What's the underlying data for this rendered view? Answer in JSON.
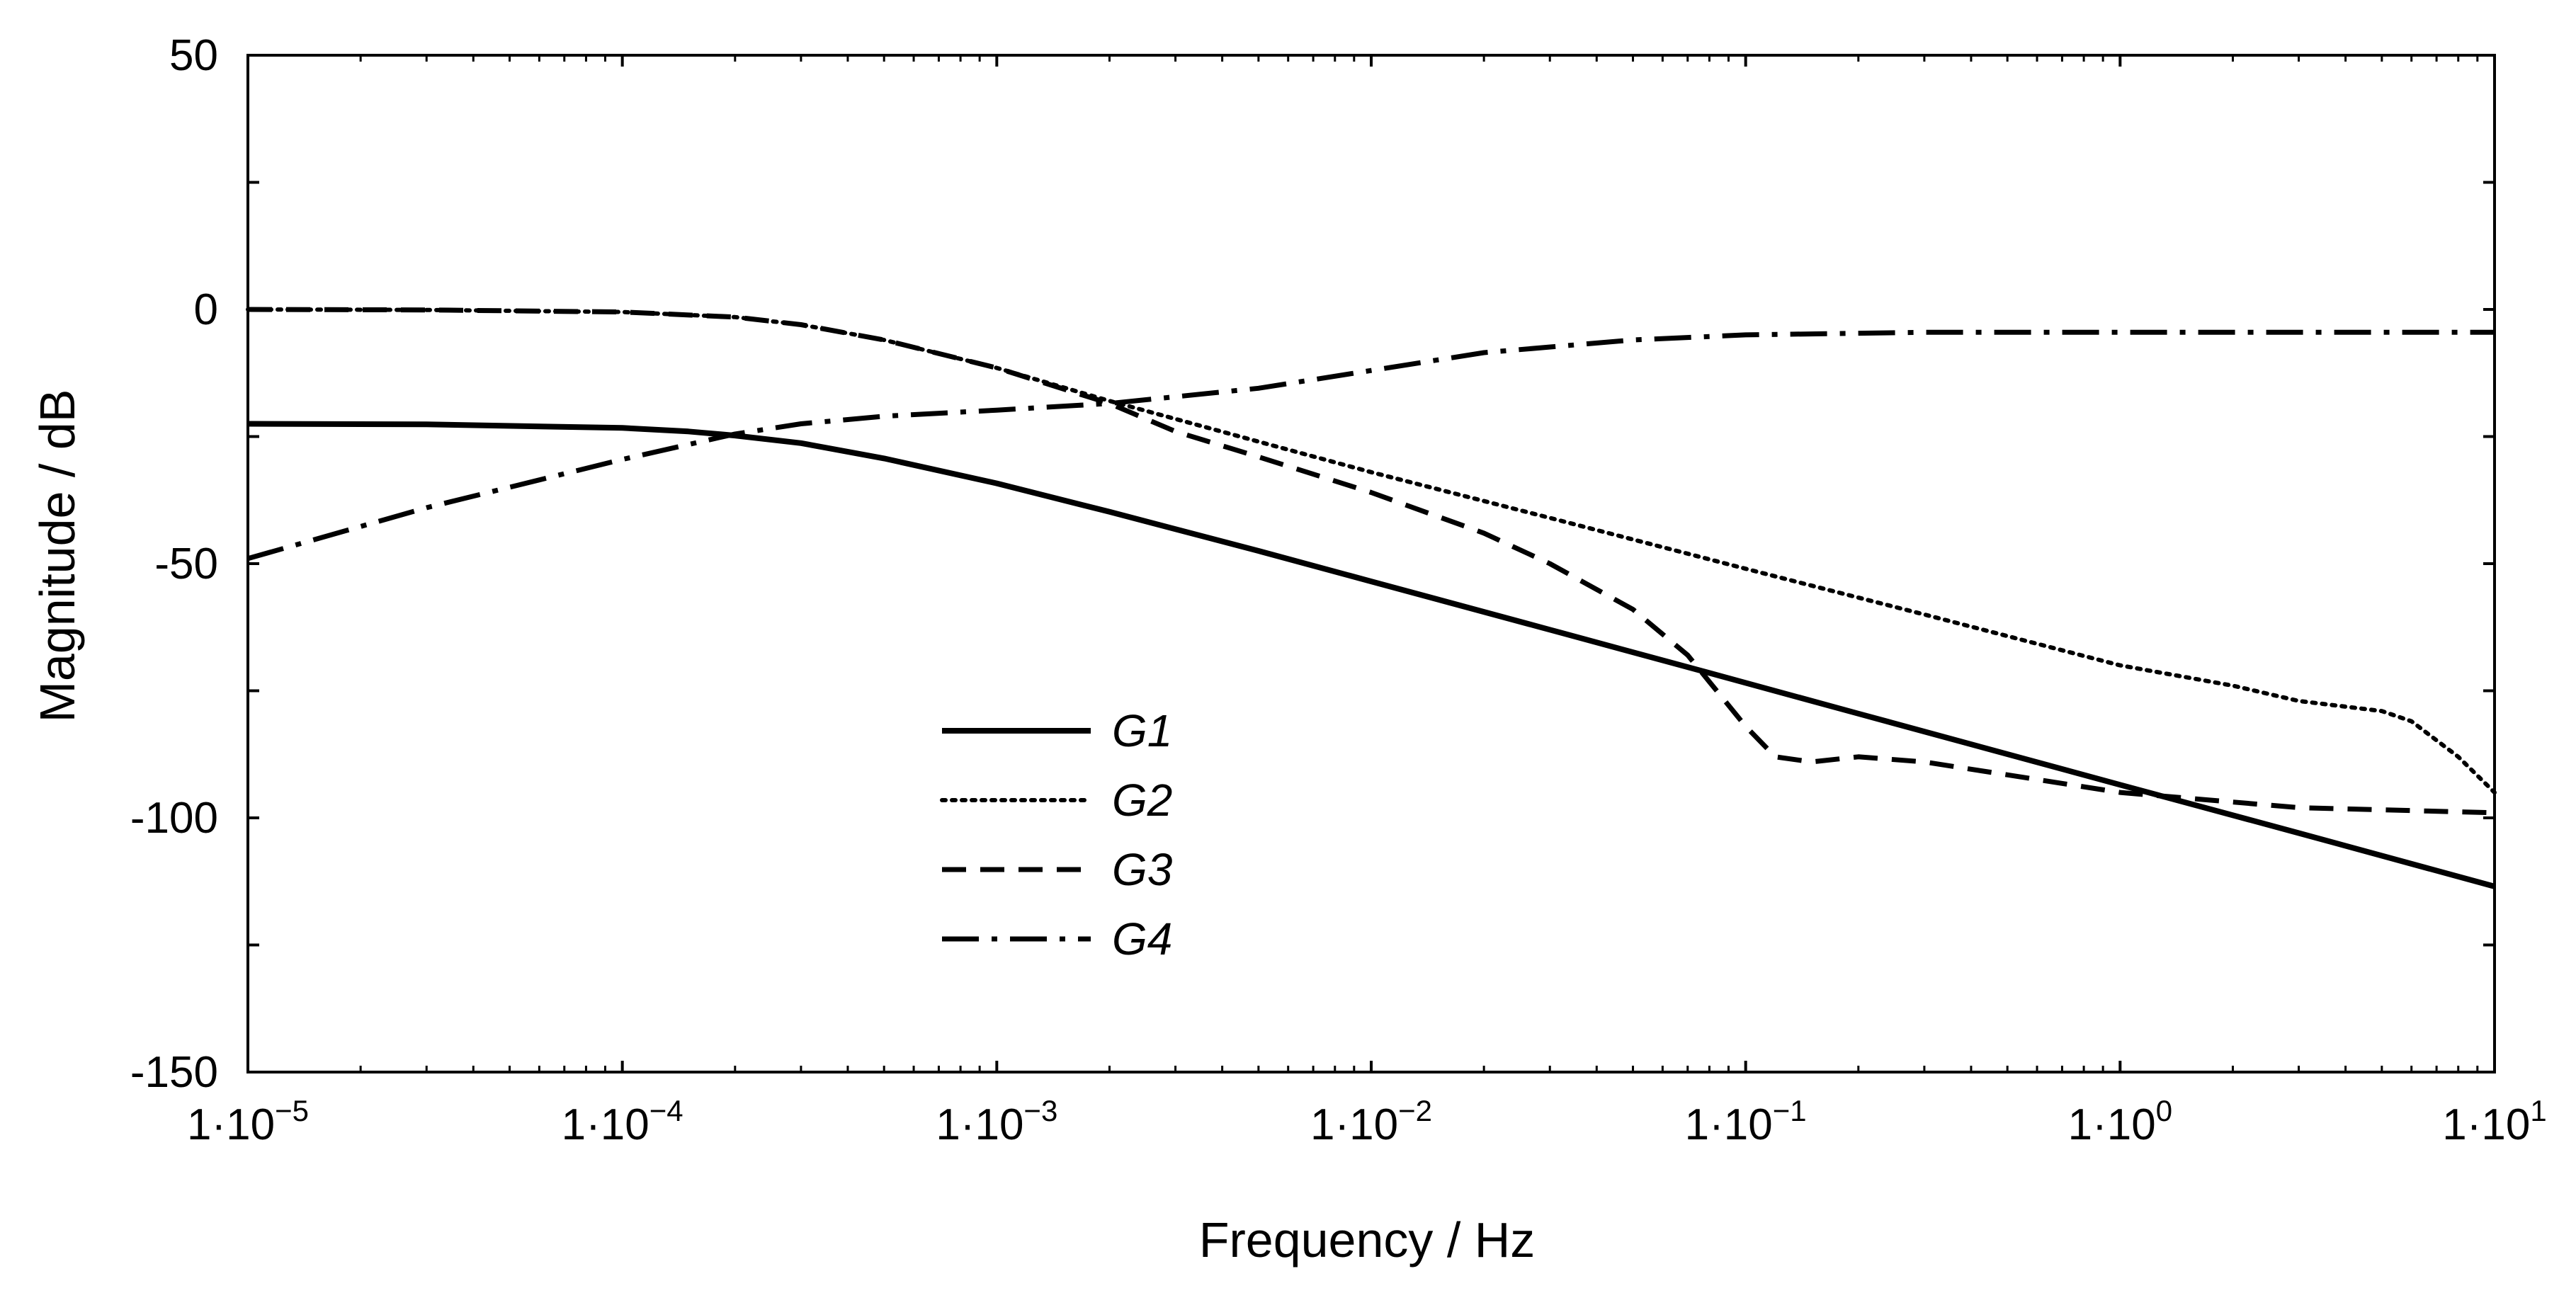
{
  "chart_data": {
    "type": "line",
    "title": "",
    "xlabel": "Frequency / Hz",
    "ylabel": "Magnitude / dB",
    "xscale": "log",
    "xlim": [
      1e-05,
      10
    ],
    "ylim": [
      -150,
      50
    ],
    "grid": false,
    "legend_position": "center-left",
    "x_ticks": [
      {
        "value": 1e-05,
        "base": "1·10",
        "exp": "−5"
      },
      {
        "value": 0.0001,
        "base": "1·10",
        "exp": "−4"
      },
      {
        "value": 0.001,
        "base": "1·10",
        "exp": "−3"
      },
      {
        "value": 0.01,
        "base": "1·10",
        "exp": "−2"
      },
      {
        "value": 0.1,
        "base": "1·10",
        "exp": "−1"
      },
      {
        "value": 1,
        "base": "1·10",
        "exp": "0"
      },
      {
        "value": 10,
        "base": "1·10",
        "exp": "1"
      }
    ],
    "y_ticks": [
      {
        "value": 50,
        "label": "50"
      },
      {
        "value": 0,
        "label": "0"
      },
      {
        "value": -50,
        "label": "-50"
      },
      {
        "value": -100,
        "label": "-100"
      },
      {
        "value": -150,
        "label": "-150"
      }
    ],
    "series": [
      {
        "name": "G1",
        "style": "solid",
        "x": [
          1e-05,
          3e-05,
          0.0001,
          0.00015,
          0.0002,
          0.0003,
          0.0005,
          0.001,
          0.002,
          0.005,
          0.01,
          0.03,
          0.08,
          0.2,
          1,
          3,
          10
        ],
        "y": [
          -22.5,
          -22.6,
          -23.3,
          -24.0,
          -24.8,
          -26.3,
          -29.3,
          -34.2,
          -39.8,
          -47.5,
          -53.5,
          -63.0,
          -71.5,
          -79.5,
          -93.5,
          -103.0,
          -113.5
        ]
      },
      {
        "name": "G2",
        "style": "dotted",
        "x": [
          1e-05,
          3e-05,
          0.0001,
          0.0002,
          0.0003,
          0.0005,
          0.001,
          0.002,
          0.005,
          0.01,
          0.03,
          0.1,
          0.3,
          1,
          2,
          3,
          5,
          6,
          8,
          10
        ],
        "y": [
          0.0,
          -0.1,
          -0.5,
          -1.5,
          -3.0,
          -6.0,
          -11.5,
          -18.0,
          -26.0,
          -32.0,
          -41.0,
          -51.0,
          -60.0,
          -70.0,
          -74.0,
          -77.0,
          -79.0,
          -81.0,
          -88.0,
          -95.0
        ]
      },
      {
        "name": "G3",
        "style": "dashed",
        "x": [
          1e-05,
          3e-05,
          0.0001,
          0.0002,
          0.0003,
          0.0005,
          0.001,
          0.002,
          0.003,
          0.005,
          0.01,
          0.02,
          0.03,
          0.05,
          0.07,
          0.1,
          0.12,
          0.15,
          0.2,
          0.3,
          1,
          3,
          10
        ],
        "y": [
          0.0,
          -0.1,
          -0.5,
          -1.5,
          -3.0,
          -6.0,
          -11.5,
          -18.5,
          -24.0,
          -29.0,
          -36.0,
          -44.0,
          -50.0,
          -59.0,
          -68.0,
          -82.0,
          -88.0,
          -89.0,
          -88.0,
          -89.0,
          -95.0,
          -98.0,
          -99.0
        ]
      },
      {
        "name": "G4",
        "style": "dash-dot",
        "x": [
          1e-05,
          3e-05,
          0.0001,
          0.0002,
          0.0003,
          0.0005,
          0.001,
          0.002,
          0.005,
          0.01,
          0.02,
          0.05,
          0.1,
          0.3,
          1,
          3,
          10
        ],
        "y": [
          -49.0,
          -39.0,
          -29.5,
          -24.5,
          -22.5,
          -21.0,
          -19.8,
          -18.5,
          -15.5,
          -12.0,
          -8.5,
          -6.0,
          -5.0,
          -4.5,
          -4.5,
          -4.5,
          -4.5
        ]
      }
    ]
  }
}
